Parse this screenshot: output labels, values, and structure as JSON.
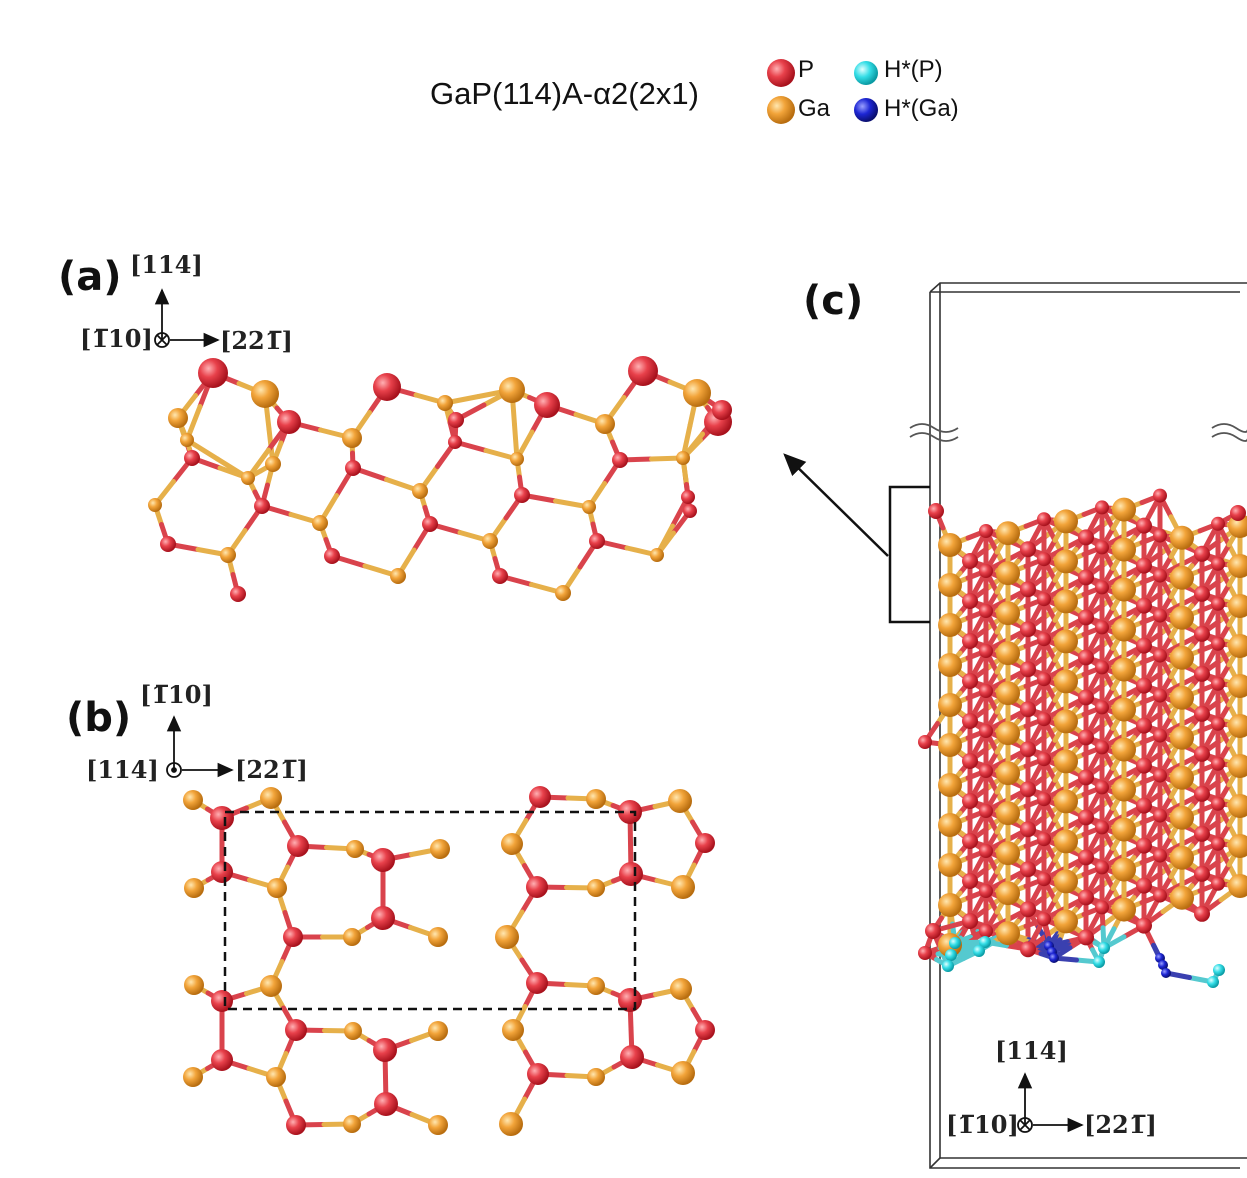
{
  "figure": {
    "title": "GaP(114)A-α2(2x1)",
    "legend": [
      {
        "label": "P",
        "color": "#e8414b"
      },
      {
        "label": "Ga",
        "color": "#f2a43a"
      },
      {
        "label": "H*(P)",
        "color": "#33dde6"
      },
      {
        "label": "H*(Ga)",
        "color": "#1d26d4"
      }
    ],
    "panels": {
      "a": {
        "label": "(a)",
        "axis_up": "[114]",
        "axis_into": "[1̅10]",
        "axis_right": "[221̅]"
      },
      "b": {
        "label": "(b)",
        "axis_up": "[1̅10]",
        "axis_outof": "[114]",
        "axis_right": "[221̅]"
      },
      "c": {
        "label": "(c)",
        "axis_up": "[114]",
        "axis_into": "[1̅10]",
        "axis_right": "[221̅]"
      }
    }
  }
}
